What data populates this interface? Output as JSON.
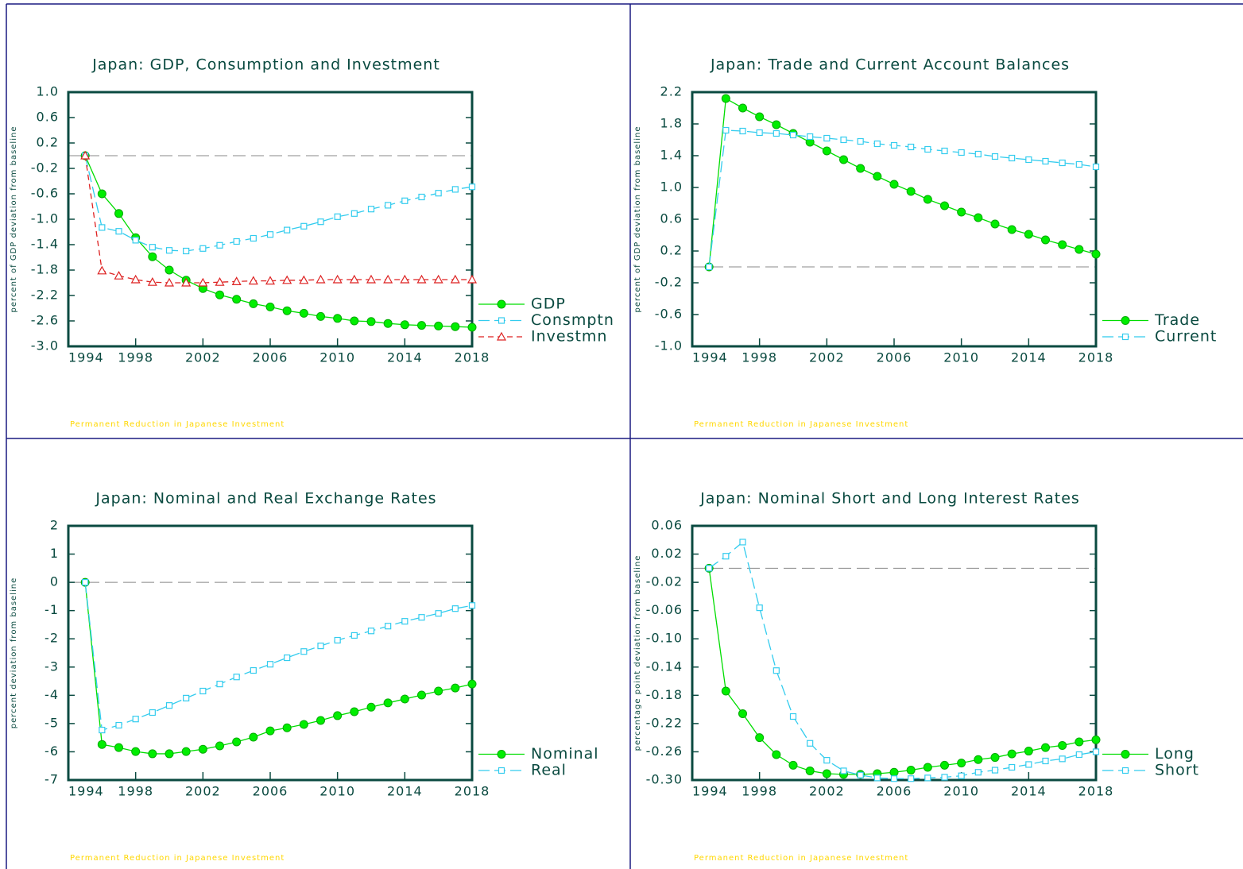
{
  "chart_data": [
    {
      "type": "line",
      "title": "Japan: GDP, Consumption and Investment",
      "y_label": "percent of GDP deviation from baseline",
      "footnote": "Permanent Reduction in Japanese Investment",
      "x": [
        1995,
        1996,
        1997,
        1998,
        1999,
        2000,
        2001,
        2002,
        2003,
        2004,
        2005,
        2006,
        2007,
        2008,
        2009,
        2010,
        2011,
        2012,
        2013,
        2014,
        2015,
        2016,
        2017,
        2018
      ],
      "xlim": [
        1994,
        2018
      ],
      "xticks": [
        1994,
        1998,
        2002,
        2006,
        2010,
        2014,
        2018
      ],
      "ylim": [
        -3.0,
        1.0
      ],
      "yticks": [
        {
          "value": 1,
          "label": "1.0"
        },
        0.6,
        0.2,
        -0.2,
        -0.6,
        {
          "value": -1,
          "label": "-1.0"
        },
        -1.4,
        -1.8,
        -2.2,
        -2.6,
        {
          "value": -3,
          "label": "-3.0"
        }
      ],
      "zero_line": true,
      "legend": "right",
      "series": [
        {
          "name": "GDP",
          "color": "#00dd00",
          "marker": "circle",
          "dash": "solid",
          "values": [
            0,
            -0.6,
            -0.91,
            -1.29,
            -1.59,
            -1.8,
            -1.96,
            -2.09,
            -2.19,
            -2.26,
            -2.33,
            -2.38,
            -2.44,
            -2.48,
            -2.53,
            -2.56,
            -2.6,
            -2.61,
            -2.64,
            -2.66,
            -2.67,
            -2.68,
            -2.69,
            -2.7
          ]
        },
        {
          "name": "Consmptn",
          "color": "#33ccee",
          "marker": "square",
          "dash": "long",
          "values": [
            0,
            -1.13,
            -1.19,
            -1.33,
            -1.44,
            -1.49,
            -1.5,
            -1.46,
            -1.41,
            -1.35,
            -1.3,
            -1.24,
            -1.17,
            -1.11,
            -1.04,
            -0.96,
            -0.91,
            -0.84,
            -0.78,
            -0.71,
            -0.65,
            -0.59,
            -0.53,
            -0.49
          ]
        },
        {
          "name": "Investmn",
          "color": "#dd2222",
          "marker": "triangle",
          "dash": "short",
          "values": [
            0,
            -1.81,
            -1.89,
            -1.95,
            -1.99,
            -2.0,
            -2.0,
            -2.0,
            -1.99,
            -1.98,
            -1.97,
            -1.97,
            -1.96,
            -1.96,
            -1.95,
            -1.95,
            -1.95,
            -1.95,
            -1.95,
            -1.95,
            -1.95,
            -1.95,
            -1.95,
            -1.95
          ]
        }
      ]
    },
    {
      "type": "line",
      "title": "Japan: Trade and Current Account Balances",
      "y_label": "percent of GDP deviation from baseline",
      "footnote": "Permanent Reduction in Japanese Investment",
      "x": [
        1995,
        1996,
        1997,
        1998,
        1999,
        2000,
        2001,
        2002,
        2003,
        2004,
        2005,
        2006,
        2007,
        2008,
        2009,
        2010,
        2011,
        2012,
        2013,
        2014,
        2015,
        2016,
        2017,
        2018
      ],
      "xlim": [
        1994,
        2018
      ],
      "xticks": [
        1994,
        1998,
        2002,
        2006,
        2010,
        2014,
        2018
      ],
      "ylim": [
        -1.0,
        2.2
      ],
      "yticks": [
        2.2,
        1.8,
        1.4,
        {
          "value": 1,
          "label": "1.0"
        },
        0.6,
        0.2,
        -0.2,
        -0.6,
        {
          "value": -1,
          "label": "-1.0"
        }
      ],
      "zero_line": true,
      "legend": "right",
      "series": [
        {
          "name": "Trade",
          "color": "#00dd00",
          "marker": "circle",
          "dash": "solid",
          "values": [
            0,
            2.12,
            2.0,
            1.89,
            1.79,
            1.68,
            1.57,
            1.46,
            1.35,
            1.24,
            1.14,
            1.04,
            0.95,
            0.85,
            0.77,
            0.69,
            0.62,
            0.54,
            0.47,
            0.41,
            0.34,
            0.28,
            0.22,
            0.16
          ]
        },
        {
          "name": "Current",
          "color": "#33ccee",
          "marker": "square",
          "dash": "long",
          "values": [
            0,
            1.72,
            1.71,
            1.69,
            1.68,
            1.66,
            1.64,
            1.62,
            1.6,
            1.58,
            1.55,
            1.53,
            1.51,
            1.48,
            1.46,
            1.44,
            1.42,
            1.39,
            1.37,
            1.35,
            1.33,
            1.31,
            1.29,
            1.26
          ]
        }
      ]
    },
    {
      "type": "line",
      "title": "Japan: Nominal and Real Exchange Rates",
      "y_label": "percent deviation from baseline",
      "footnote": "Permanent Reduction in Japanese Investment",
      "x": [
        1995,
        1996,
        1997,
        1998,
        1999,
        2000,
        2001,
        2002,
        2003,
        2004,
        2005,
        2006,
        2007,
        2008,
        2009,
        2010,
        2011,
        2012,
        2013,
        2014,
        2015,
        2016,
        2017,
        2018
      ],
      "xlim": [
        1994,
        2018
      ],
      "xticks": [
        1994,
        1998,
        2002,
        2006,
        2010,
        2014,
        2018
      ],
      "ylim": [
        -7,
        2
      ],
      "yticks": [
        2,
        1,
        0,
        -1,
        -2,
        -3,
        -4,
        -5,
        -6,
        -7
      ],
      "zero_line": true,
      "legend": "right",
      "series": [
        {
          "name": "Nominal",
          "color": "#00dd00",
          "marker": "circle",
          "dash": "solid",
          "values": [
            0,
            -5.74,
            -5.85,
            -5.99,
            -6.07,
            -6.07,
            -5.99,
            -5.91,
            -5.79,
            -5.65,
            -5.48,
            -5.26,
            -5.15,
            -5.03,
            -4.89,
            -4.72,
            -4.58,
            -4.42,
            -4.27,
            -4.13,
            -3.99,
            -3.85,
            -3.74,
            -3.6
          ]
        },
        {
          "name": "Real",
          "color": "#33ccee",
          "marker": "square",
          "dash": "long",
          "values": [
            0,
            -5.23,
            -5.06,
            -4.84,
            -4.61,
            -4.36,
            -4.1,
            -3.85,
            -3.6,
            -3.35,
            -3.12,
            -2.9,
            -2.67,
            -2.45,
            -2.25,
            -2.05,
            -1.88,
            -1.72,
            -1.55,
            -1.38,
            -1.24,
            -1.1,
            -0.93,
            -0.82
          ]
        }
      ]
    },
    {
      "type": "line",
      "title": "Japan: Nominal Short and Long Interest Rates",
      "y_label": "percentage point deviation from baseline",
      "footnote": "Permanent Reduction in Japanese Investment",
      "x": [
        1995,
        1996,
        1997,
        1998,
        1999,
        2000,
        2001,
        2002,
        2003,
        2004,
        2005,
        2006,
        2007,
        2008,
        2009,
        2010,
        2011,
        2012,
        2013,
        2014,
        2015,
        2016,
        2017,
        2018
      ],
      "xlim": [
        1994,
        2018
      ],
      "xticks": [
        1994,
        1998,
        2002,
        2006,
        2010,
        2014,
        2018
      ],
      "ylim": [
        -0.3,
        0.06
      ],
      "yticks": [
        0.06,
        0.02,
        -0.02,
        -0.06,
        {
          "value": -0.1,
          "label": "-0.10"
        },
        -0.14,
        -0.18,
        -0.22,
        -0.26,
        {
          "value": -0.3,
          "label": "-0.30"
        }
      ],
      "zero_line": true,
      "legend": "right",
      "series": [
        {
          "name": "Long",
          "color": "#00dd00",
          "marker": "circle",
          "dash": "solid",
          "values": [
            0,
            -0.174,
            -0.206,
            -0.24,
            -0.264,
            -0.279,
            -0.287,
            -0.291,
            -0.292,
            -0.292,
            -0.291,
            -0.289,
            -0.286,
            -0.282,
            -0.279,
            -0.276,
            -0.271,
            -0.268,
            -0.263,
            -0.259,
            -0.254,
            -0.251,
            -0.246,
            -0.243
          ]
        },
        {
          "name": "Short",
          "color": "#33ccee",
          "marker": "square",
          "dash": "long",
          "values": [
            0,
            0.017,
            0.037,
            -0.056,
            -0.145,
            -0.21,
            -0.248,
            -0.272,
            -0.287,
            -0.293,
            -0.297,
            -0.298,
            -0.298,
            -0.297,
            -0.296,
            -0.294,
            -0.289,
            -0.286,
            -0.282,
            -0.278,
            -0.273,
            -0.27,
            -0.264,
            -0.26
          ]
        }
      ]
    }
  ]
}
